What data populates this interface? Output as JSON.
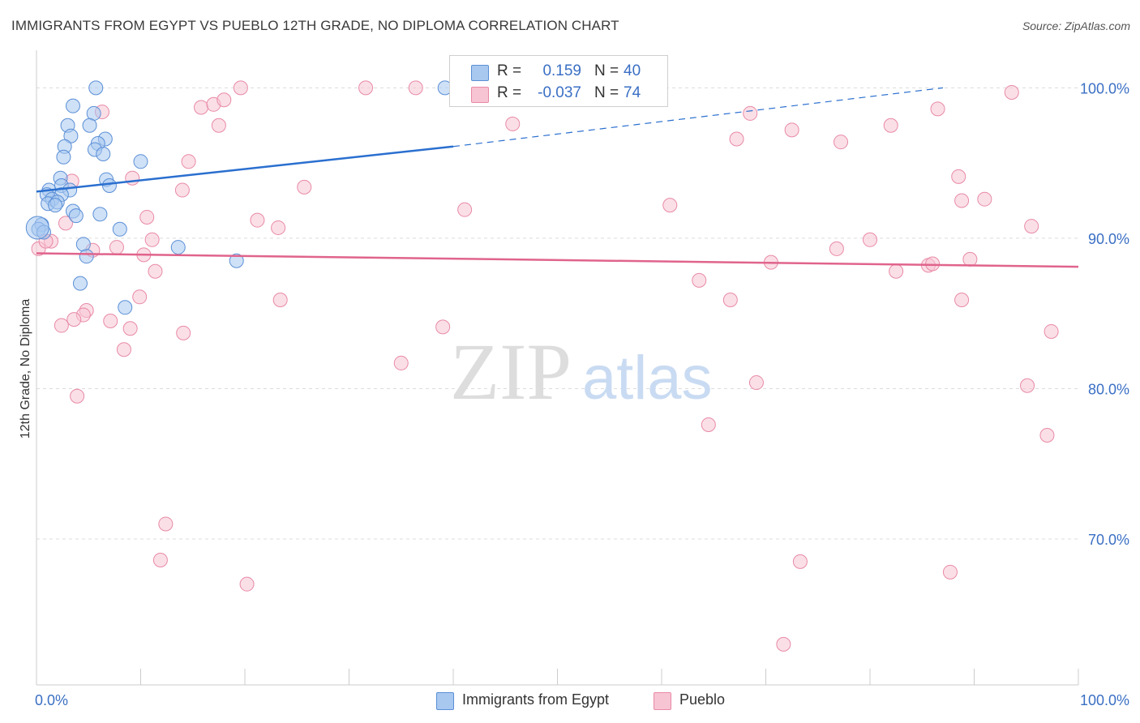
{
  "title": "IMMIGRANTS FROM EGYPT VS PUEBLO 12TH GRADE, NO DIPLOMA CORRELATION CHART",
  "source": "Source: ZipAtlas.com",
  "watermark": {
    "part1": "ZIP",
    "part2": "atlas"
  },
  "legend": {
    "rows": [
      {
        "r_label": "R =",
        "r_value": "0.159",
        "n_label": "N =",
        "n_value": "40"
      },
      {
        "r_label": "R =",
        "r_value": "-0.037",
        "n_label": "N =",
        "n_value": "74"
      }
    ]
  },
  "bottom_legend": {
    "series1": "Immigrants from Egypt",
    "series2": "Pueblo"
  },
  "colors": {
    "egypt_fill": "#a8c8f0",
    "egypt_stroke": "#5b8fd6",
    "egypt_line": "#2a6fcf",
    "pueblo_fill": "#f7c4d3",
    "pueblo_stroke": "#e88aa6",
    "pueblo_line": "#e0648c",
    "axis_label": "#3a6fc4",
    "grid": "#dcdcdc"
  },
  "chart_data": {
    "type": "scatter",
    "title": "IMMIGRANTS FROM EGYPT VS PUEBLO 12TH GRADE, NO DIPLOMA CORRELATION CHART",
    "xlabel": "",
    "ylabel": "12th Grade, No Diploma",
    "xlim": [
      0,
      100
    ],
    "ylim": [
      60.3,
      102.5
    ],
    "x_tick_labels": [
      "0.0%",
      "100.0%"
    ],
    "y_ticks": [
      70,
      80,
      90,
      100
    ],
    "y_tick_labels": [
      "70.0%",
      "80.0%",
      "90.0%",
      "100.0%"
    ],
    "grid": true,
    "series": [
      {
        "name": "Immigrants from Egypt",
        "points": [
          [
            5.7,
            100.0
          ],
          [
            39.2,
            100.0
          ],
          [
            3.5,
            98.8
          ],
          [
            5.5,
            98.3
          ],
          [
            3.0,
            97.5
          ],
          [
            5.1,
            97.5
          ],
          [
            3.3,
            96.8
          ],
          [
            6.6,
            96.6
          ],
          [
            2.7,
            96.1
          ],
          [
            5.9,
            96.3
          ],
          [
            5.6,
            95.9
          ],
          [
            6.4,
            95.6
          ],
          [
            2.6,
            95.4
          ],
          [
            10.0,
            95.1
          ],
          [
            2.3,
            94.0
          ],
          [
            6.7,
            93.9
          ],
          [
            2.4,
            93.5
          ],
          [
            7.0,
            93.5
          ],
          [
            1.2,
            93.2
          ],
          [
            3.2,
            93.2
          ],
          [
            1.0,
            92.9
          ],
          [
            2.4,
            92.9
          ],
          [
            1.5,
            92.6
          ],
          [
            1.1,
            92.3
          ],
          [
            2.0,
            92.4
          ],
          [
            1.8,
            92.2
          ],
          [
            3.5,
            91.8
          ],
          [
            6.1,
            91.6
          ],
          [
            3.8,
            91.5
          ],
          [
            0.5,
            90.9
          ],
          [
            0.2,
            90.6
          ],
          [
            8.0,
            90.6
          ],
          [
            0.7,
            90.4
          ],
          [
            4.5,
            89.6
          ],
          [
            13.6,
            89.4
          ],
          [
            4.8,
            88.8
          ],
          [
            19.2,
            88.5
          ],
          [
            4.2,
            87.0
          ],
          [
            8.5,
            85.4
          ],
          [
            0.1,
            90.7
          ]
        ]
      },
      {
        "name": "Pueblo",
        "points": [
          [
            19.6,
            100.0
          ],
          [
            31.6,
            100.0
          ],
          [
            36.4,
            100.0
          ],
          [
            47.0,
            100.0
          ],
          [
            93.6,
            99.7
          ],
          [
            6.3,
            98.4
          ],
          [
            15.8,
            98.7
          ],
          [
            17.0,
            98.9
          ],
          [
            18.0,
            99.2
          ],
          [
            86.5,
            98.6
          ],
          [
            68.5,
            98.3
          ],
          [
            45.7,
            97.6
          ],
          [
            17.5,
            97.5
          ],
          [
            82.0,
            97.5
          ],
          [
            72.5,
            97.2
          ],
          [
            67.2,
            96.6
          ],
          [
            77.2,
            96.4
          ],
          [
            14.6,
            95.1
          ],
          [
            88.5,
            94.1
          ],
          [
            9.2,
            94.0
          ],
          [
            3.4,
            93.8
          ],
          [
            25.7,
            93.4
          ],
          [
            14.0,
            93.2
          ],
          [
            91.0,
            92.6
          ],
          [
            88.8,
            92.5
          ],
          [
            60.8,
            92.2
          ],
          [
            41.1,
            91.9
          ],
          [
            21.2,
            91.2
          ],
          [
            2.8,
            91.0
          ],
          [
            23.2,
            90.7
          ],
          [
            95.5,
            90.8
          ],
          [
            1.4,
            89.8
          ],
          [
            80.0,
            89.9
          ],
          [
            11.1,
            89.9
          ],
          [
            76.8,
            89.3
          ],
          [
            5.4,
            89.2
          ],
          [
            10.3,
            88.9
          ],
          [
            89.6,
            88.6
          ],
          [
            70.5,
            88.4
          ],
          [
            85.6,
            88.2
          ],
          [
            86.0,
            88.3
          ],
          [
            82.5,
            87.8
          ],
          [
            11.4,
            87.8
          ],
          [
            63.6,
            87.2
          ],
          [
            9.9,
            86.1
          ],
          [
            23.4,
            85.9
          ],
          [
            66.6,
            85.9
          ],
          [
            88.8,
            85.9
          ],
          [
            4.8,
            85.2
          ],
          [
            4.5,
            84.9
          ],
          [
            3.6,
            84.6
          ],
          [
            7.1,
            84.5
          ],
          [
            2.4,
            84.2
          ],
          [
            39.0,
            84.1
          ],
          [
            9.0,
            84.0
          ],
          [
            14.1,
            83.7
          ],
          [
            97.4,
            83.8
          ],
          [
            8.4,
            82.6
          ],
          [
            35.0,
            81.7
          ],
          [
            69.1,
            80.4
          ],
          [
            95.1,
            80.2
          ],
          [
            3.9,
            79.5
          ],
          [
            64.5,
            77.6
          ],
          [
            97.0,
            76.9
          ],
          [
            12.4,
            71.0
          ],
          [
            11.9,
            68.6
          ],
          [
            20.2,
            67.0
          ],
          [
            73.3,
            68.5
          ],
          [
            87.7,
            67.8
          ],
          [
            71.7,
            63.0
          ],
          [
            0.2,
            89.3
          ],
          [
            0.9,
            89.8
          ],
          [
            7.7,
            89.4
          ],
          [
            10.6,
            91.4
          ]
        ]
      }
    ],
    "trend_lines": [
      {
        "series": "Immigrants from Egypt",
        "solid_x": [
          0,
          40
        ],
        "solid_y": [
          93.1,
          96.1
        ],
        "dashed_x": [
          40,
          87
        ],
        "dashed_y": [
          96.1,
          100.0
        ]
      },
      {
        "series": "Pueblo",
        "solid_x": [
          0,
          100
        ],
        "solid_y": [
          89.0,
          88.1
        ]
      }
    ]
  }
}
